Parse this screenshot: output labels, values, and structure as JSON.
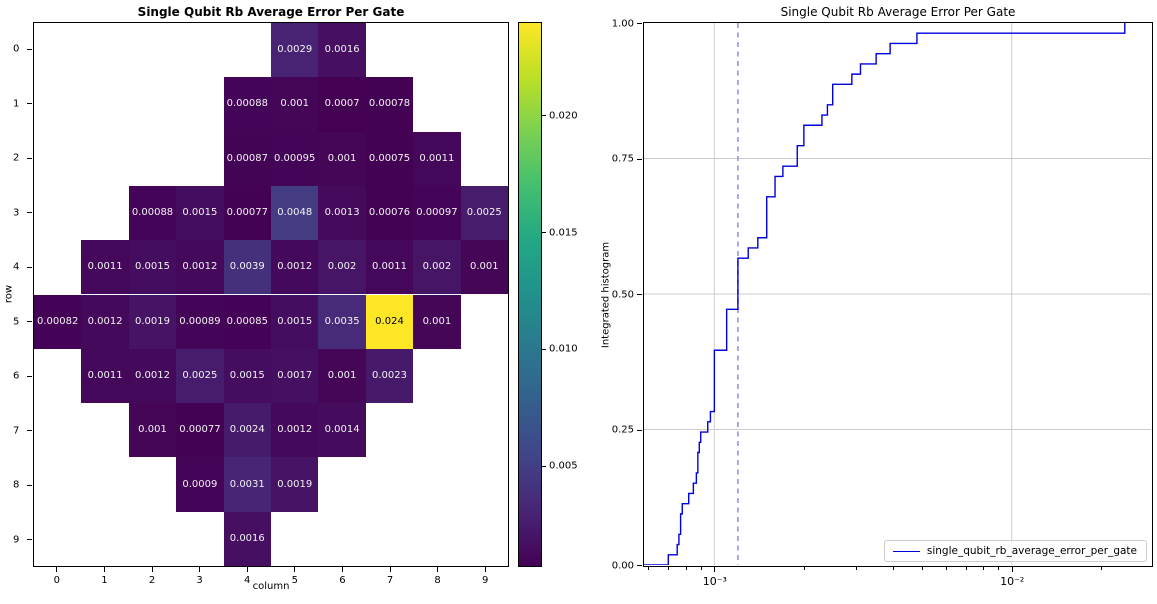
{
  "figure": {
    "background": "#ffffff"
  },
  "colors": {
    "line": "#0000dd",
    "median_dash": "#9b9fe6",
    "grid": "#cccccc",
    "spine": "#000000",
    "annotation_light": "#f2f2f2",
    "annotation_dark": "#000000"
  },
  "chart_data": [
    {
      "type": "heatmap",
      "title": "Single Qubit Rb Average Error Per Gate",
      "xlabel": "column",
      "ylabel": "row",
      "x_ticks": [
        "0",
        "1",
        "2",
        "3",
        "4",
        "5",
        "6",
        "7",
        "8",
        "9"
      ],
      "y_ticks": [
        "0",
        "1",
        "2",
        "3",
        "4",
        "5",
        "6",
        "7",
        "8",
        "9"
      ],
      "colormap": "viridis",
      "vmin": 0.0007,
      "vmax": 0.024,
      "colorbar_ticks": [
        {
          "value": 0.005,
          "label": "0.005"
        },
        {
          "value": 0.01,
          "label": "0.010"
        },
        {
          "value": 0.015,
          "label": "0.015"
        },
        {
          "value": 0.02,
          "label": "0.020"
        }
      ],
      "cells": [
        {
          "row": 0,
          "col": 5,
          "value": 0.0029,
          "label": "0.0029"
        },
        {
          "row": 0,
          "col": 6,
          "value": 0.0016,
          "label": "0.0016"
        },
        {
          "row": 1,
          "col": 4,
          "value": 0.00088,
          "label": "0.00088"
        },
        {
          "row": 1,
          "col": 5,
          "value": 0.001,
          "label": "0.001"
        },
        {
          "row": 1,
          "col": 6,
          "value": 0.0007,
          "label": "0.0007"
        },
        {
          "row": 1,
          "col": 7,
          "value": 0.00078,
          "label": "0.00078"
        },
        {
          "row": 2,
          "col": 4,
          "value": 0.00087,
          "label": "0.00087"
        },
        {
          "row": 2,
          "col": 5,
          "value": 0.00095,
          "label": "0.00095"
        },
        {
          "row": 2,
          "col": 6,
          "value": 0.001,
          "label": "0.001"
        },
        {
          "row": 2,
          "col": 7,
          "value": 0.00075,
          "label": "0.00075"
        },
        {
          "row": 2,
          "col": 8,
          "value": 0.0011,
          "label": "0.0011"
        },
        {
          "row": 3,
          "col": 2,
          "value": 0.00088,
          "label": "0.00088"
        },
        {
          "row": 3,
          "col": 3,
          "value": 0.0015,
          "label": "0.0015"
        },
        {
          "row": 3,
          "col": 4,
          "value": 0.00077,
          "label": "0.00077"
        },
        {
          "row": 3,
          "col": 5,
          "value": 0.0048,
          "label": "0.0048"
        },
        {
          "row": 3,
          "col": 6,
          "value": 0.0013,
          "label": "0.0013"
        },
        {
          "row": 3,
          "col": 7,
          "value": 0.00076,
          "label": "0.00076"
        },
        {
          "row": 3,
          "col": 8,
          "value": 0.00097,
          "label": "0.00097"
        },
        {
          "row": 3,
          "col": 9,
          "value": 0.0025,
          "label": "0.0025"
        },
        {
          "row": 4,
          "col": 1,
          "value": 0.0011,
          "label": "0.0011"
        },
        {
          "row": 4,
          "col": 2,
          "value": 0.0015,
          "label": "0.0015"
        },
        {
          "row": 4,
          "col": 3,
          "value": 0.0012,
          "label": "0.0012"
        },
        {
          "row": 4,
          "col": 4,
          "value": 0.0039,
          "label": "0.0039"
        },
        {
          "row": 4,
          "col": 5,
          "value": 0.0012,
          "label": "0.0012"
        },
        {
          "row": 4,
          "col": 6,
          "value": 0.002,
          "label": "0.002"
        },
        {
          "row": 4,
          "col": 7,
          "value": 0.0011,
          "label": "0.0011"
        },
        {
          "row": 4,
          "col": 8,
          "value": 0.002,
          "label": "0.002"
        },
        {
          "row": 4,
          "col": 9,
          "value": 0.001,
          "label": "0.001"
        },
        {
          "row": 5,
          "col": 0,
          "value": 0.00082,
          "label": "0.00082"
        },
        {
          "row": 5,
          "col": 1,
          "value": 0.0012,
          "label": "0.0012"
        },
        {
          "row": 5,
          "col": 2,
          "value": 0.0019,
          "label": "0.0019"
        },
        {
          "row": 5,
          "col": 3,
          "value": 0.00089,
          "label": "0.00089"
        },
        {
          "row": 5,
          "col": 4,
          "value": 0.00085,
          "label": "0.00085"
        },
        {
          "row": 5,
          "col": 5,
          "value": 0.0015,
          "label": "0.0015"
        },
        {
          "row": 5,
          "col": 6,
          "value": 0.0035,
          "label": "0.0035"
        },
        {
          "row": 5,
          "col": 7,
          "value": 0.024,
          "label": "0.024"
        },
        {
          "row": 5,
          "col": 8,
          "value": 0.001,
          "label": "0.001"
        },
        {
          "row": 6,
          "col": 1,
          "value": 0.0011,
          "label": "0.0011"
        },
        {
          "row": 6,
          "col": 2,
          "value": 0.0012,
          "label": "0.0012"
        },
        {
          "row": 6,
          "col": 3,
          "value": 0.0025,
          "label": "0.0025"
        },
        {
          "row": 6,
          "col": 4,
          "value": 0.0015,
          "label": "0.0015"
        },
        {
          "row": 6,
          "col": 5,
          "value": 0.0017,
          "label": "0.0017"
        },
        {
          "row": 6,
          "col": 6,
          "value": 0.001,
          "label": "0.001"
        },
        {
          "row": 6,
          "col": 7,
          "value": 0.0023,
          "label": "0.0023"
        },
        {
          "row": 7,
          "col": 2,
          "value": 0.001,
          "label": "0.001"
        },
        {
          "row": 7,
          "col": 3,
          "value": 0.00077,
          "label": "0.00077"
        },
        {
          "row": 7,
          "col": 4,
          "value": 0.0024,
          "label": "0.0024"
        },
        {
          "row": 7,
          "col": 5,
          "value": 0.0012,
          "label": "0.0012"
        },
        {
          "row": 7,
          "col": 6,
          "value": 0.0014,
          "label": "0.0014"
        },
        {
          "row": 8,
          "col": 3,
          "value": 0.0009,
          "label": "0.0009"
        },
        {
          "row": 8,
          "col": 4,
          "value": 0.0031,
          "label": "0.0031"
        },
        {
          "row": 8,
          "col": 5,
          "value": 0.0019,
          "label": "0.0019"
        },
        {
          "row": 9,
          "col": 4,
          "value": 0.0016,
          "label": "0.0016"
        }
      ]
    },
    {
      "type": "line",
      "subtype": "integrated-histogram-step-cdf",
      "title": "Single Qubit Rb Average Error Per Gate",
      "xlabel": "",
      "ylabel": "Integrated histogram",
      "xscale": "log",
      "xlim": [
        0.00058,
        0.0294
      ],
      "ylim": [
        0.0,
        1.0
      ],
      "grid": true,
      "x_major_ticks": [
        {
          "value": 0.001,
          "label": "10⁻³"
        },
        {
          "value": 0.01,
          "label": "10⁻²"
        }
      ],
      "y_ticks": [
        {
          "value": 0.0,
          "label": "0.00"
        },
        {
          "value": 0.25,
          "label": "0.25"
        },
        {
          "value": 0.5,
          "label": "0.50"
        },
        {
          "value": 0.75,
          "label": "0.75"
        },
        {
          "value": 1.0,
          "label": "1.00"
        }
      ],
      "reference_lines": [
        {
          "name": "median",
          "value": 0.0012,
          "style": "dashed",
          "color": "#9b9fe6"
        }
      ],
      "legend": {
        "position": "lower right",
        "entries": [
          {
            "label": "single_qubit_rb_average_error_per_gate",
            "color": "#0000dd"
          }
        ]
      },
      "series": [
        {
          "name": "single_qubit_rb_average_error_per_gate",
          "color": "#0000dd",
          "values": [
            0.0007,
            0.00075,
            0.00076,
            0.00077,
            0.00077,
            0.00078,
            0.00082,
            0.00085,
            0.00087,
            0.00088,
            0.00088,
            0.00089,
            0.0009,
            0.00095,
            0.00097,
            0.001,
            0.001,
            0.001,
            0.001,
            0.001,
            0.001,
            0.0011,
            0.0011,
            0.0011,
            0.0011,
            0.0012,
            0.0012,
            0.0012,
            0.0012,
            0.0012,
            0.0013,
            0.0014,
            0.0015,
            0.0015,
            0.0015,
            0.0015,
            0.0016,
            0.0016,
            0.0017,
            0.0019,
            0.0019,
            0.002,
            0.002,
            0.0023,
            0.0024,
            0.0025,
            0.0025,
            0.0029,
            0.0031,
            0.0035,
            0.0039,
            0.0048,
            0.024
          ]
        }
      ]
    }
  ]
}
